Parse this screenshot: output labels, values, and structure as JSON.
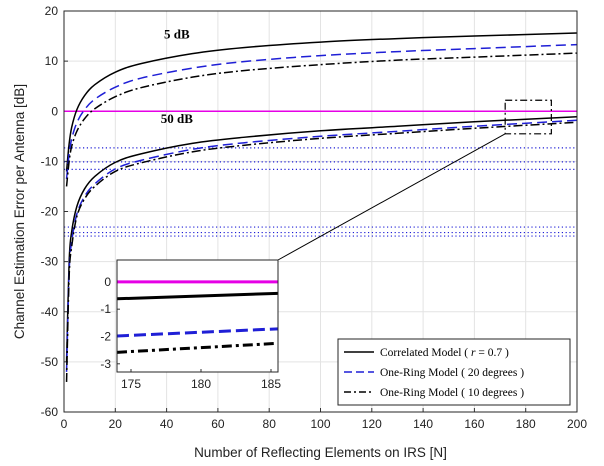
{
  "chart_data": {
    "type": "line",
    "xlabel": "Number of Reflecting Elements on IRS [N]",
    "ylabel": "Channel Estimation Error per Antenna [dB]",
    "xlim": [
      0,
      200
    ],
    "ylim": [
      -60,
      20
    ],
    "xticks": [
      "0",
      "20",
      "40",
      "60",
      "80",
      "100",
      "120",
      "140",
      "160",
      "180",
      "200"
    ],
    "yticks": [
      "20",
      "10",
      "0",
      "-10",
      "-20",
      "-30",
      "-40",
      "-50",
      "-60"
    ],
    "grid": true,
    "legend_position": "bottom-right",
    "annotations": [
      {
        "text": "5 dB",
        "x": 44,
        "y": 14.5
      },
      {
        "text": "50 dB",
        "x": 44,
        "y": -2.3
      }
    ],
    "legend": [
      {
        "label": "Correlated Model ( r = 0.7 )",
        "label_prefix": "Correlated Model ( ",
        "label_var": "r",
        "label_suffix": " = 0.7 )",
        "style": "solid",
        "color": "#000000"
      },
      {
        "label": "One-Ring Model ( 20 degrees )",
        "style": "dashed",
        "color": "#1f1fd6"
      },
      {
        "label": "One-Ring Model ( 10 degrees )",
        "style": "dashdot",
        "color": "#000000"
      }
    ],
    "series": [
      {
        "group": "5 dB",
        "style": "solid",
        "color": "#000000",
        "x": [
          1,
          2,
          3,
          5,
          8,
          12,
          20,
          30,
          50,
          70,
          100,
          130,
          160,
          200
        ],
        "y": [
          -12,
          -6.5,
          -3.2,
          0.3,
          3.1,
          5.3,
          7.8,
          9.5,
          11.5,
          12.7,
          13.8,
          14.5,
          15.0,
          15.6
        ]
      },
      {
        "group": "5 dB",
        "style": "dashed",
        "color": "#1f1fd6",
        "x": [
          1,
          2,
          3,
          5,
          8,
          12,
          20,
          30,
          50,
          70,
          100,
          130,
          160,
          200
        ],
        "y": [
          -13.5,
          -8.5,
          -5.5,
          -2.3,
          0.3,
          2.4,
          4.8,
          6.6,
          8.6,
          9.9,
          11.1,
          11.9,
          12.5,
          13.3
        ]
      },
      {
        "group": "5 dB",
        "style": "dashdot",
        "color": "#000000",
        "x": [
          1,
          2,
          3,
          5,
          8,
          12,
          20,
          30,
          50,
          70,
          100,
          130,
          160,
          200
        ],
        "y": [
          -15,
          -10,
          -7,
          -4,
          -1.5,
          0.5,
          2.9,
          4.7,
          6.8,
          8.1,
          9.3,
          10.2,
          10.8,
          11.6
        ]
      },
      {
        "group": "50 dB",
        "style": "solid",
        "color": "#000000",
        "x": [
          1,
          2,
          3,
          5,
          8,
          12,
          20,
          30,
          50,
          70,
          100,
          130,
          160,
          200
        ],
        "y": [
          -50,
          -30,
          -24,
          -19,
          -15.5,
          -13,
          -10.2,
          -8.5,
          -6.4,
          -5.2,
          -3.9,
          -3.0,
          -2.1,
          -1.1
        ]
      },
      {
        "group": "50 dB",
        "style": "dashed",
        "color": "#1f1fd6",
        "x": [
          1,
          2,
          3,
          5,
          8,
          12,
          20,
          30,
          50,
          70,
          100,
          130,
          160,
          200
        ],
        "y": [
          -52,
          -32,
          -26,
          -20.5,
          -17,
          -14.5,
          -11.5,
          -9.8,
          -7.6,
          -6.3,
          -5.0,
          -4.0,
          -3.0,
          -1.8
        ]
      },
      {
        "group": "50 dB",
        "style": "dashdot",
        "color": "#000000",
        "x": [
          1,
          2,
          3,
          5,
          8,
          12,
          20,
          30,
          50,
          70,
          100,
          130,
          160,
          200
        ],
        "y": [
          -54,
          -33,
          -27,
          -21,
          -17.5,
          -15,
          -12,
          -10.3,
          -8.1,
          -6.8,
          -5.4,
          -4.4,
          -3.4,
          -2.2
        ]
      },
      {
        "group": "reference",
        "style": "solid",
        "color": "#e600e6",
        "x": [
          0,
          200
        ],
        "y": [
          0,
          0
        ]
      },
      {
        "group": "reference",
        "style": "dotted",
        "color": "#1f1fd6",
        "x": [
          0,
          200
        ],
        "y": [
          -7.3,
          -7.3
        ]
      },
      {
        "group": "reference",
        "style": "dotted",
        "color": "#1f1fd6",
        "x": [
          0,
          200
        ],
        "y": [
          -10.1,
          -10.1
        ]
      },
      {
        "group": "reference",
        "style": "dotted",
        "color": "#1f1fd6",
        "x": [
          0,
          200
        ],
        "y": [
          -11.6,
          -11.6
        ]
      },
      {
        "group": "reference",
        "style": "dotted",
        "color": "#1f1fd6",
        "x": [
          0,
          200
        ],
        "y": [
          -23.1,
          -23.1
        ]
      },
      {
        "group": "reference",
        "style": "dotted",
        "color": "#1f1fd6",
        "x": [
          0,
          200
        ],
        "y": [
          -24.2,
          -24.2
        ]
      },
      {
        "group": "reference",
        "style": "dotted",
        "color": "#1f1fd6",
        "x": [
          0,
          200
        ],
        "y": [
          -24.9,
          -24.9
        ]
      }
    ],
    "zoom_box": {
      "xlim": [
        172,
        190
      ],
      "ylim": [
        -4.5,
        2.2
      ]
    },
    "inset": {
      "xlim": [
        174,
        185.5
      ],
      "ylim": [
        -3.3,
        0.8
      ],
      "xticks": [
        "175",
        "180",
        "185"
      ],
      "yticks": [
        "0",
        "-1",
        "-2",
        "-3"
      ],
      "series": [
        {
          "style": "solid",
          "color": "#e600e6",
          "x": [
            174,
            185.5
          ],
          "y": [
            0,
            0
          ]
        },
        {
          "style": "solid",
          "color": "#000000",
          "x": [
            174,
            185.5
          ],
          "y": [
            -0.62,
            -0.42
          ]
        },
        {
          "style": "dashed",
          "color": "#1f1fd6",
          "x": [
            174,
            185.5
          ],
          "y": [
            -1.98,
            -1.72
          ]
        },
        {
          "style": "dashdot",
          "color": "#000000",
          "x": [
            174,
            185.5
          ],
          "y": [
            -2.58,
            -2.25
          ]
        }
      ]
    }
  }
}
